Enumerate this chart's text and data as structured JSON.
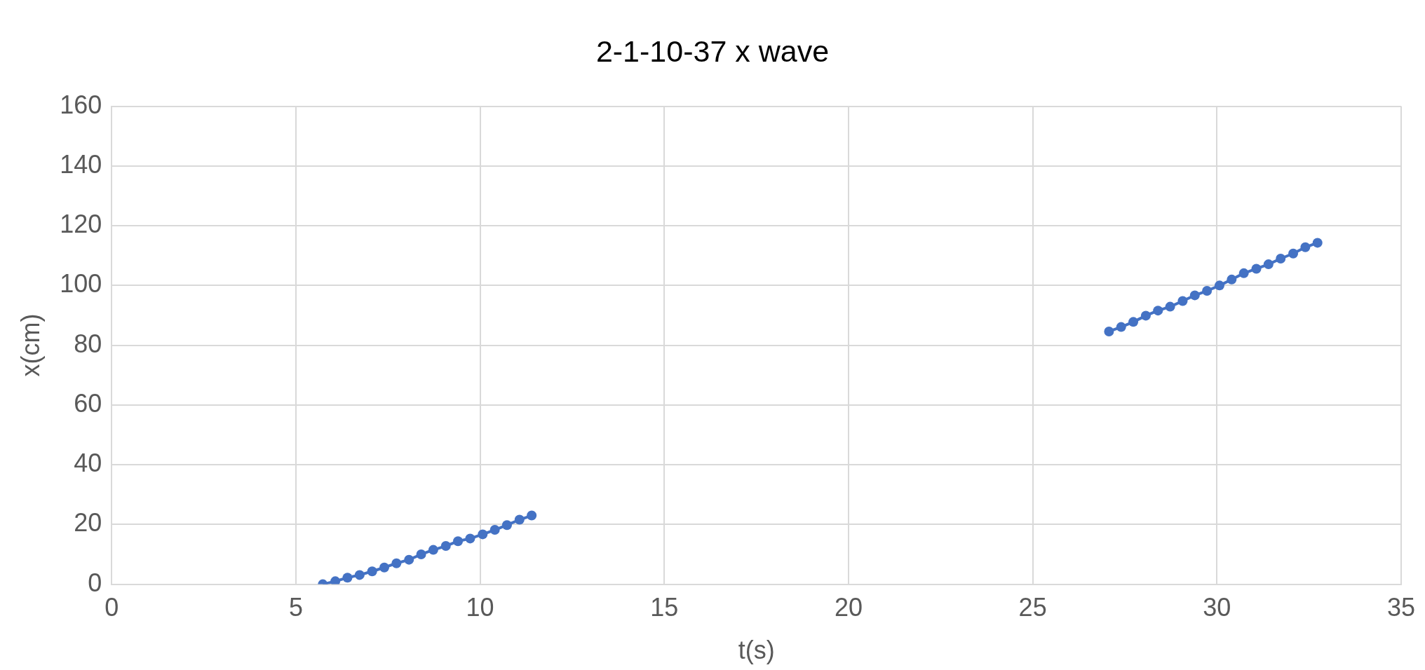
{
  "chart_data": {
    "type": "line",
    "title": "2-1-10-37 x wave",
    "xlabel": "t(s)",
    "ylabel": "x(cm)",
    "xlim": [
      0,
      35
    ],
    "xticks": [
      0,
      5,
      10,
      15,
      20,
      25,
      30,
      35
    ],
    "ylim": [
      0,
      160
    ],
    "yticks": [
      0,
      20,
      40,
      60,
      80,
      100,
      120,
      140,
      160
    ],
    "grid": true,
    "legend": false,
    "marker": "circle",
    "line_style": "solid",
    "series": [
      {
        "color": "#4472c4",
        "x": [
          5.73,
          6.07,
          6.4,
          6.73,
          7.07,
          7.4,
          7.73,
          8.07,
          8.4,
          8.73,
          9.07,
          9.4,
          9.73,
          10.07,
          10.4,
          10.73,
          11.07,
          11.4
        ],
        "values": [
          0,
          1,
          2.2,
          3.1,
          4.3,
          5.6,
          7,
          8.2,
          10,
          11.5,
          12.8,
          14.4,
          15.3,
          16.7,
          18.2,
          19.8,
          21.6,
          23
        ]
      },
      {
        "color": "#4472c4",
        "x": [
          27.07,
          27.4,
          27.73,
          28.07,
          28.4,
          28.73,
          29.07,
          29.4,
          29.73,
          30.07,
          30.4,
          30.73,
          31.07,
          31.4,
          31.73,
          32.07,
          32.4,
          32.73
        ],
        "values": [
          84.6,
          86.1,
          87.8,
          89.9,
          91.6,
          92.9,
          94.8,
          96.7,
          98.2,
          100,
          102,
          104.1,
          105.6,
          107.1,
          109,
          110.7,
          112.8,
          114.3
        ]
      }
    ]
  }
}
